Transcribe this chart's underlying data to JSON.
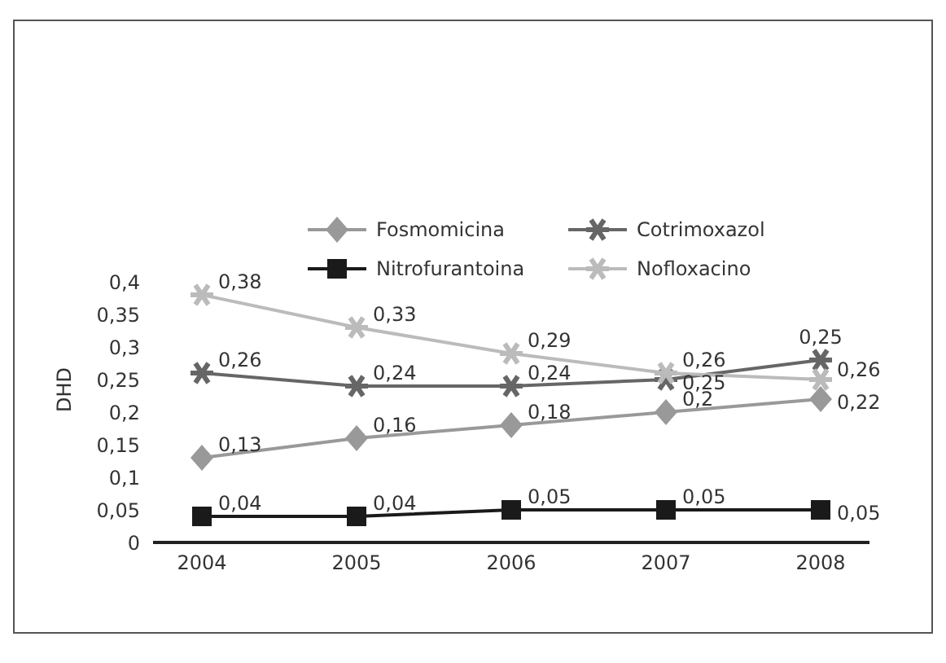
{
  "chart_data": {
    "type": "line",
    "categories": [
      "2004",
      "2005",
      "2006",
      "2007",
      "2008"
    ],
    "ylabel": "DHD",
    "ylim": [
      0,
      0.4
    ],
    "yticks": [
      0,
      {
        "value": 0.05,
        "label": "0,05"
      },
      {
        "value": 0.1,
        "label": "0,1"
      },
      {
        "value": 0.15,
        "label": "0,15"
      },
      {
        "value": 0.2,
        "label": "0,2"
      },
      {
        "value": 0.25,
        "label": "0,25"
      },
      {
        "value": 0.3,
        "label": "0,3"
      },
      {
        "value": 0.35,
        "label": "0,35"
      },
      {
        "value": 0.4,
        "label": "0,4"
      }
    ],
    "annotations": [
      {
        "text": "0,25",
        "x": "2008",
        "y": 0.28
      },
      {
        "text": "0,26",
        "x": "2008",
        "y": 0.25
      }
    ],
    "grid": false,
    "legend": "top",
    "line_style": "solid",
    "series": [
      {
        "name": "Fosmomicina",
        "color": "#999999",
        "marker": "diamond",
        "values": [
          0.13,
          0.16,
          0.18,
          0.2,
          0.22
        ],
        "value_labels": [
          "0,13",
          "0,16",
          "0,18",
          "0,2",
          "0,22"
        ]
      },
      {
        "name": "Cotrimoxazol",
        "color": "#666666",
        "marker": "cross",
        "values": [
          0.26,
          0.24,
          0.24,
          0.25,
          0.28
        ],
        "value_labels": [
          "0,26",
          "0,24",
          "0,24",
          "0,25",
          null
        ]
      },
      {
        "name": "Nitrofurantoina",
        "color": "#1a1a1a",
        "marker": "square",
        "values": [
          0.04,
          0.04,
          0.05,
          0.05,
          0.05
        ],
        "value_labels": [
          "0,04",
          "0,04",
          "0,05",
          "0,05",
          "0,05"
        ]
      },
      {
        "name": "Nofloxacino",
        "color": "#bbbbbb",
        "marker": "cross",
        "values": [
          0.38,
          0.33,
          0.29,
          0.26,
          0.25
        ],
        "value_labels": [
          "0,38",
          "0,33",
          "0,29",
          "0,26",
          null
        ]
      }
    ]
  }
}
